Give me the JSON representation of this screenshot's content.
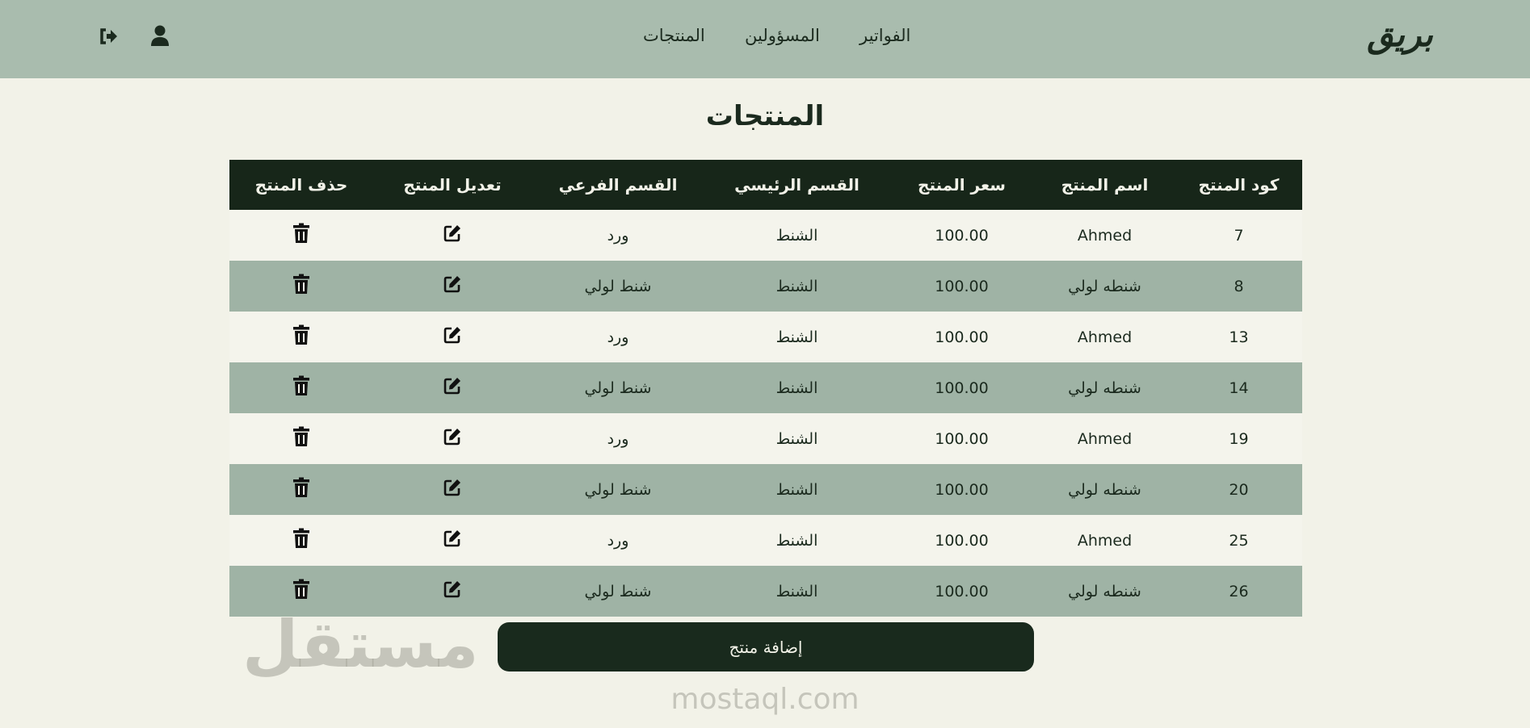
{
  "header": {
    "logo": "بريق",
    "nav": [
      "الفواتير",
      "المسؤولين",
      "المنتجات"
    ],
    "icons": [
      "user-icon",
      "logout-icon"
    ]
  },
  "page_title": "المنتجات",
  "table": {
    "columns": [
      "كود المنتج",
      "اسم المنتج",
      "سعر المنتج",
      "القسم الرئيسي",
      "القسم الفرعي",
      "تعديل المنتج",
      "حذف المنتج"
    ],
    "rows": [
      {
        "code": "7",
        "name": "Ahmed",
        "price": "100.00",
        "main": "الشنط",
        "sub": "ورد"
      },
      {
        "code": "8",
        "name": "شنطه لولي",
        "price": "100.00",
        "main": "الشنط",
        "sub": "شنط لولي"
      },
      {
        "code": "13",
        "name": "Ahmed",
        "price": "100.00",
        "main": "الشنط",
        "sub": "ورد"
      },
      {
        "code": "14",
        "name": "شنطه لولي",
        "price": "100.00",
        "main": "الشنط",
        "sub": "شنط لولي"
      },
      {
        "code": "19",
        "name": "Ahmed",
        "price": "100.00",
        "main": "الشنط",
        "sub": "ورد"
      },
      {
        "code": "20",
        "name": "شنطه لولي",
        "price": "100.00",
        "main": "الشنط",
        "sub": "شنط لولي"
      },
      {
        "code": "25",
        "name": "Ahmed",
        "price": "100.00",
        "main": "الشنط",
        "sub": "ورد"
      },
      {
        "code": "26",
        "name": "شنطه لولي",
        "price": "100.00",
        "main": "الشنط",
        "sub": "شنط لولي"
      }
    ]
  },
  "add_button": "إضافة منتج",
  "watermark": {
    "arabic": "مستقل",
    "latin": "mostaql.com"
  },
  "colors": {
    "header_bg": "#a9bcae",
    "page_bg": "#f2f2e8",
    "table_head": "#172619",
    "alt_row": "#9fb3a5",
    "button": "#192a1d"
  }
}
